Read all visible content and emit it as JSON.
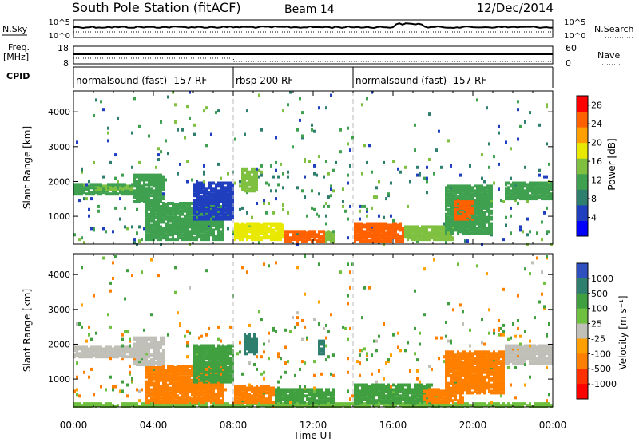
{
  "header": {
    "title": "South Pole Station (fitACF)",
    "beam": "Beam 14",
    "date": "12/Dec/2014"
  },
  "panels": {
    "nsky": {
      "label": "N.Sky",
      "left_ticks": [
        "10^5",
        "10^0"
      ],
      "right_ticks": [
        "10^5",
        "10^0"
      ],
      "right_label": "N.Search"
    },
    "freq": {
      "label_line1": "Freq.",
      "label_line2": "[MHz]",
      "left_ticks": [
        "18",
        "8"
      ],
      "right_ticks": [
        "60",
        "0"
      ],
      "right_label": "Nave"
    },
    "cpid": {
      "label": "CPID",
      "segments": [
        {
          "text": "normalsound (fast) -157 RF",
          "start_hour": 0,
          "end_hour": 8
        },
        {
          "text": "rbsp 200 RF",
          "start_hour": 8,
          "end_hour": 14
        },
        {
          "text": "normalsound (fast) -157 RF",
          "start_hour": 14,
          "end_hour": 24
        }
      ]
    }
  },
  "colors": {
    "power_scale": [
      "#0000ff",
      "#1f3fbf",
      "#2f7f6f",
      "#3fa050",
      "#7fc040",
      "#e8e800",
      "#ffa000",
      "#ff6000",
      "#ff0000"
    ],
    "velocity_scale": [
      "#3050c0",
      "#2f7f6f",
      "#40a040",
      "#70c040",
      "#c0c0b8",
      "#ffa000",
      "#ff8000",
      "#ff3000",
      "#ff0000"
    ]
  },
  "chart_data": [
    {
      "type": "heatmap",
      "name": "power",
      "xlabel": "",
      "ylabel": "Slant Range [km]",
      "xlim": [
        0,
        24
      ],
      "ylim": [
        200,
        4600
      ],
      "yticks": [
        1000,
        2000,
        3000,
        4000
      ],
      "colorbar": {
        "label": "Power [dB]",
        "ticks": [
          "4",
          "8",
          "12",
          "16",
          "20",
          "24",
          "28"
        ],
        "range": [
          0,
          30
        ]
      },
      "bands": [
        {
          "x0": 0,
          "x1": 3.5,
          "y0": 1600,
          "y1": 1950,
          "v": 12
        },
        {
          "x0": 1.0,
          "x1": 3.0,
          "y0": 1750,
          "y1": 1900,
          "v": 16
        },
        {
          "x0": 3.0,
          "x1": 4.5,
          "y0": 1400,
          "y1": 2200,
          "v": 10
        },
        {
          "x0": 3.5,
          "x1": 7.5,
          "y0": 300,
          "y1": 1400,
          "v": 11
        },
        {
          "x0": 6.0,
          "x1": 8.0,
          "y0": 900,
          "y1": 2000,
          "v": 6
        },
        {
          "x0": 8.0,
          "x1": 10.5,
          "y0": 300,
          "y1": 800,
          "v": 18
        },
        {
          "x0": 8.3,
          "x1": 9.2,
          "y0": 1700,
          "y1": 2400,
          "v": 15
        },
        {
          "x0": 10.5,
          "x1": 12.5,
          "y0": 250,
          "y1": 600,
          "v": 24
        },
        {
          "x0": 12.5,
          "x1": 13.0,
          "y0": 250,
          "y1": 550,
          "v": 16
        },
        {
          "x0": 14.0,
          "x1": 16.5,
          "y0": 250,
          "y1": 800,
          "v": 26
        },
        {
          "x0": 16.5,
          "x1": 19.0,
          "y0": 300,
          "y1": 700,
          "v": 14
        },
        {
          "x0": 18.5,
          "x1": 21.0,
          "y0": 500,
          "y1": 1900,
          "v": 12
        },
        {
          "x0": 19.0,
          "x1": 20.0,
          "y0": 900,
          "y1": 1500,
          "v": 24
        },
        {
          "x0": 21.5,
          "x1": 24.0,
          "y0": 1500,
          "y1": 2000,
          "v": 10
        }
      ]
    },
    {
      "type": "heatmap",
      "name": "velocity",
      "xlabel": "Time UT",
      "ylabel": "Slant Range [km]",
      "xlim": [
        0,
        24
      ],
      "ylim": [
        200,
        4600
      ],
      "yticks": [
        1000,
        2000,
        3000,
        4000
      ],
      "xticks": [
        "00:00",
        "04:00",
        "08:00",
        "12:00",
        "16:00",
        "20:00",
        "00:00"
      ],
      "colorbar": {
        "label": "Velocity [m s⁻¹]",
        "ticks": [
          "1000",
          "500",
          "100",
          "25",
          "-25",
          "-100",
          "-500",
          "-1000"
        ],
        "levels": [
          -1000,
          -500,
          -100,
          -25,
          25,
          100,
          500,
          1000
        ]
      },
      "bands": [
        {
          "x0": 0,
          "x1": 3.5,
          "y0": 1600,
          "y1": 1950,
          "v": 0
        },
        {
          "x0": 3.0,
          "x1": 4.5,
          "y0": 1400,
          "y1": 2200,
          "v": 0
        },
        {
          "x0": 3.5,
          "x1": 7.5,
          "y0": 300,
          "y1": 1400,
          "v": -150
        },
        {
          "x0": 6.0,
          "x1": 8.0,
          "y0": 900,
          "y1": 2000,
          "v": 300
        },
        {
          "x0": 8.0,
          "x1": 10.0,
          "y0": 300,
          "y1": 800,
          "v": -200
        },
        {
          "x0": 8.5,
          "x1": 9.2,
          "y0": 1700,
          "y1": 2300,
          "v": 800
        },
        {
          "x0": 10.0,
          "x1": 13.0,
          "y0": 250,
          "y1": 700,
          "v": 300
        },
        {
          "x0": 12.2,
          "x1": 12.6,
          "y0": 1700,
          "y1": 2100,
          "v": 800
        },
        {
          "x0": 14.0,
          "x1": 18.0,
          "y0": 250,
          "y1": 850,
          "v": 250
        },
        {
          "x0": 17.5,
          "x1": 19.5,
          "y0": 300,
          "y1": 700,
          "v": -150
        },
        {
          "x0": 18.5,
          "x1": 21.5,
          "y0": 600,
          "y1": 1800,
          "v": -200
        },
        {
          "x0": 21.5,
          "x1": 24.0,
          "y0": 1450,
          "y1": 2000,
          "v": 0
        },
        {
          "x0": 0,
          "x1": 24.0,
          "y0": 200,
          "y1": 320,
          "v": 100
        }
      ]
    }
  ]
}
